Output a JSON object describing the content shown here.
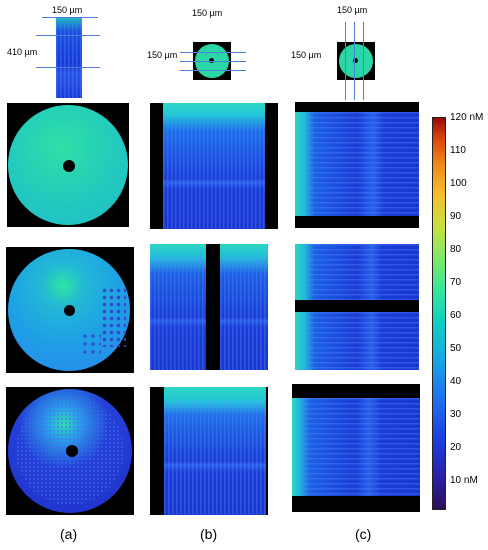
{
  "top_labels": {
    "a_width": "150 µm",
    "a_height": "410 µm",
    "b_width": "150 µm",
    "b_height": "150 µm",
    "c_width": "150 µm",
    "c_height": "150 µm"
  },
  "colorbar": {
    "ticks": [
      "120 nM",
      "110",
      "100",
      "90",
      "80",
      "70",
      "60",
      "50",
      "40",
      "30",
      "20",
      "10 nM"
    ],
    "colors": [
      "#2c0f5a",
      "#1c3fe0",
      "#16a6e6",
      "#36e69a",
      "#c6e040",
      "#f08a1c",
      "#9a0a08"
    ]
  },
  "panel_labels": {
    "a": "(a)",
    "b": "(b)",
    "c": "(c)"
  }
}
